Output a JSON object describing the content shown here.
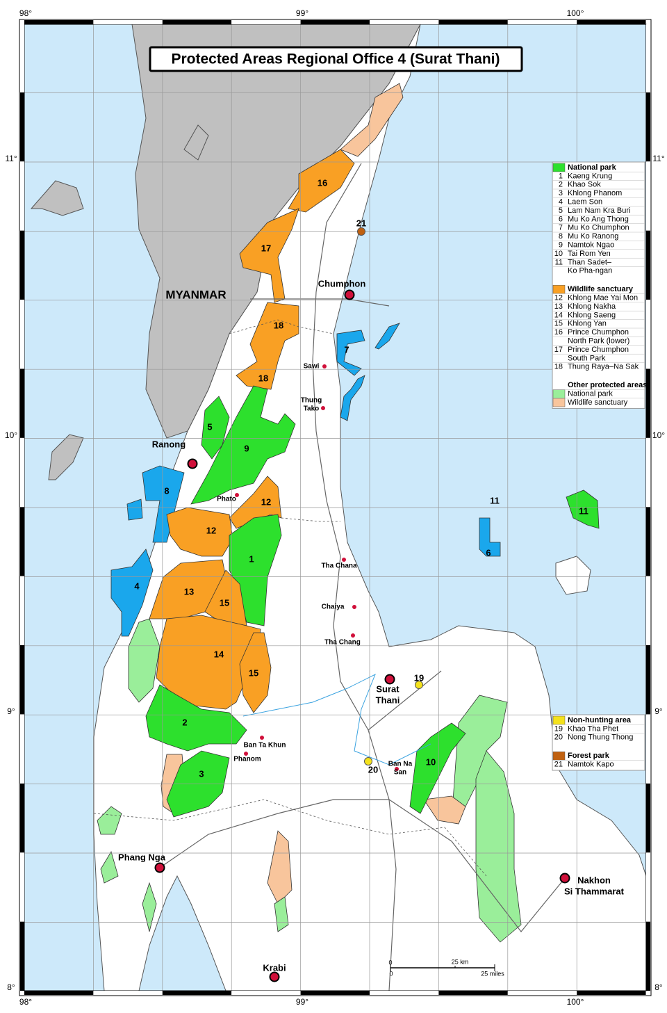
{
  "title": "Protected Areas Regional Office 4 (Surat Thani)",
  "country_label": "MYANMAR",
  "graticule": {
    "longitudes": [
      "98°",
      "99°",
      "100°"
    ],
    "latitudes": [
      "11°",
      "10°",
      "9°",
      "8°"
    ]
  },
  "cities": [
    {
      "lines": [
        "Chumphon"
      ]
    },
    {
      "lines": [
        "Ranong"
      ]
    },
    {
      "lines": [
        "Surat",
        "Thani"
      ]
    },
    {
      "lines": [
        "Phang Nga"
      ]
    },
    {
      "lines": [
        "Nakhon",
        "Si Thammarat"
      ]
    },
    {
      "lines": [
        "Krabi"
      ]
    }
  ],
  "towns": [
    {
      "lines": [
        "Sawi"
      ]
    },
    {
      "lines": [
        "Thung",
        "Tako"
      ]
    },
    {
      "lines": [
        "Phato"
      ]
    },
    {
      "lines": [
        "Tha Chana"
      ]
    },
    {
      "lines": [
        "Chaiya"
      ]
    },
    {
      "lines": [
        "Tha Chang"
      ]
    },
    {
      "lines": [
        "Ban Ta Khun"
      ]
    },
    {
      "lines": [
        "Phanom"
      ]
    },
    {
      "lines": [
        "Ban Na",
        "San"
      ]
    }
  ],
  "area_labels": [
    "16",
    "17",
    "18",
    "18",
    "7",
    "5",
    "9",
    "8",
    "12",
    "12",
    "1",
    "4",
    "13",
    "15",
    "14",
    "15",
    "2",
    "3",
    "10",
    "6",
    "11",
    "11",
    "19",
    "20",
    "21"
  ],
  "legend": {
    "sections": [
      {
        "heading": "National park",
        "color": "#2de02d",
        "items": [
          {
            "num": "1",
            "lines": [
              "Kaeng Krung"
            ]
          },
          {
            "num": "2",
            "lines": [
              "Khao Sok"
            ]
          },
          {
            "num": "3",
            "lines": [
              "Khlong Phanom"
            ]
          },
          {
            "num": "4",
            "lines": [
              "Laem Son"
            ]
          },
          {
            "num": "5",
            "lines": [
              "Lam Nam Kra Buri"
            ]
          },
          {
            "num": "6",
            "lines": [
              "Mu Ko Ang Thong"
            ]
          },
          {
            "num": "7",
            "lines": [
              "Mu Ko Chumphon"
            ]
          },
          {
            "num": "8",
            "lines": [
              "Mu Ko Ranong"
            ]
          },
          {
            "num": "9",
            "lines": [
              "Namtok Ngao"
            ]
          },
          {
            "num": "10",
            "lines": [
              "Tai Rom Yen"
            ]
          },
          {
            "num": "11",
            "lines": [
              "Than Sadet–",
              "Ko Pha-ngan"
            ]
          }
        ]
      },
      {
        "heading": "Wildlife sanctuary",
        "color": "#f9a024",
        "items": [
          {
            "num": "12",
            "lines": [
              "Khlong Mae Yai Mon"
            ]
          },
          {
            "num": "13",
            "lines": [
              "Khlong Nakha"
            ]
          },
          {
            "num": "14",
            "lines": [
              "Khlong Saeng"
            ]
          },
          {
            "num": "15",
            "lines": [
              "Khlong Yan"
            ]
          },
          {
            "num": "16",
            "lines": [
              "Prince Chumphon",
              "North Park (lower)"
            ]
          },
          {
            "num": "17",
            "lines": [
              "Prince Chumphon",
              "South Park"
            ]
          },
          {
            "num": "18",
            "lines": [
              "Thung Raya–Na Sak"
            ]
          }
        ]
      },
      {
        "heading": "Other protected areas",
        "items": [
          {
            "color": "#9aee9a",
            "lines": [
              "National park"
            ]
          },
          {
            "color": "#f8c59c",
            "lines": [
              "Wildlife sanctuary"
            ]
          }
        ]
      },
      {
        "heading": "Non-hunting area",
        "color": "#f4e21c",
        "items": [
          {
            "num": "19",
            "lines": [
              "Khao Tha Phet"
            ]
          },
          {
            "num": "20",
            "lines": [
              "Nong Thung Thong"
            ]
          }
        ]
      },
      {
        "heading": "Forest park",
        "color": "#c0600f",
        "items": [
          {
            "num": "21",
            "lines": [
              "Namtok Kapo"
            ]
          }
        ]
      }
    ]
  },
  "scale_bar": {
    "km": [
      "0",
      "25 km"
    ],
    "miles": [
      "0",
      "25 miles"
    ]
  }
}
